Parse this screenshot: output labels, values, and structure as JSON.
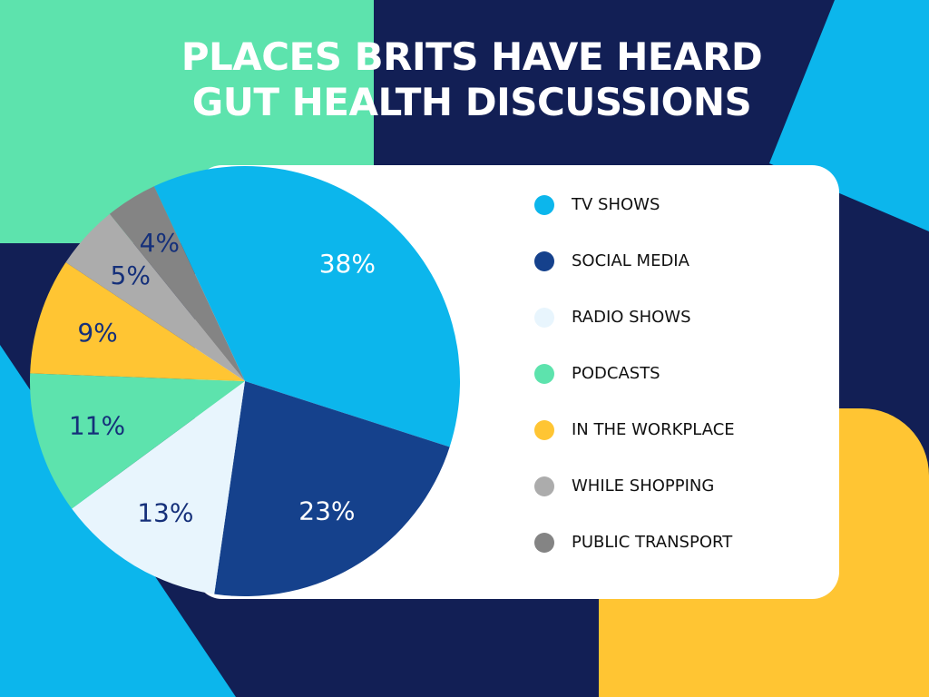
{
  "chart_data": {
    "type": "pie",
    "title": "PLACES BRITS HAVE HEARD GUT HEALTH DISCUSSIONS",
    "categories": [
      "TV SHOWS",
      "SOCIAL MEDIA",
      "RADIO SHOWS",
      "PODCASTS",
      "IN THE WORKPLACE",
      "WHILE SHOPPING",
      "PUBLIC TRANSPORT"
    ],
    "values": [
      38,
      23,
      13,
      11,
      9,
      5,
      4
    ],
    "value_labels": [
      "38%",
      "23%",
      "13%",
      "11%",
      "9%",
      "5%",
      "4%"
    ],
    "colors": [
      "#0cb6ec",
      "#15418c",
      "#e8f5fd",
      "#5de3ad",
      "#ffc533",
      "#acacac",
      "#848484"
    ]
  }
}
